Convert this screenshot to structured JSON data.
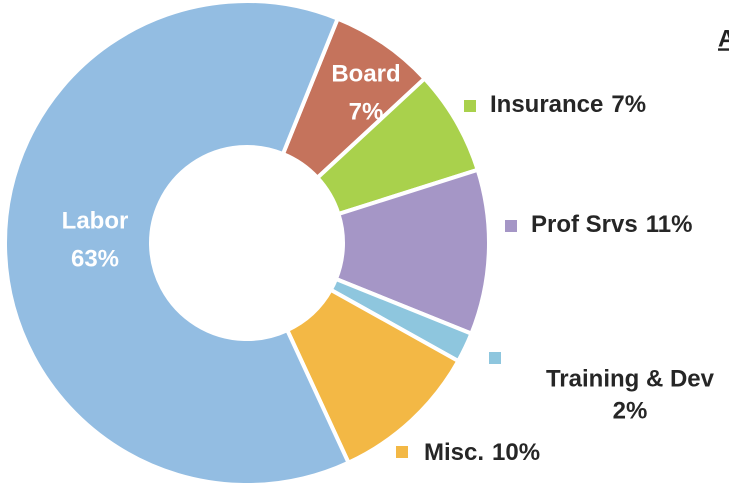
{
  "chart_data": {
    "type": "donut",
    "title": "A",
    "categories": [
      "Board",
      "Insurance",
      "Prof Srvs",
      "Training & Dev",
      "Misc.",
      "Labor"
    ],
    "values": [
      7,
      7,
      11,
      2,
      10,
      63
    ],
    "value_labels": [
      "7%",
      "7%",
      "11%",
      "2%",
      "10%",
      "63%"
    ],
    "colors": [
      "#c5735c",
      "#a9d14c",
      "#a596c6",
      "#8ec6de",
      "#f3b845",
      "#93bde2"
    ]
  }
}
